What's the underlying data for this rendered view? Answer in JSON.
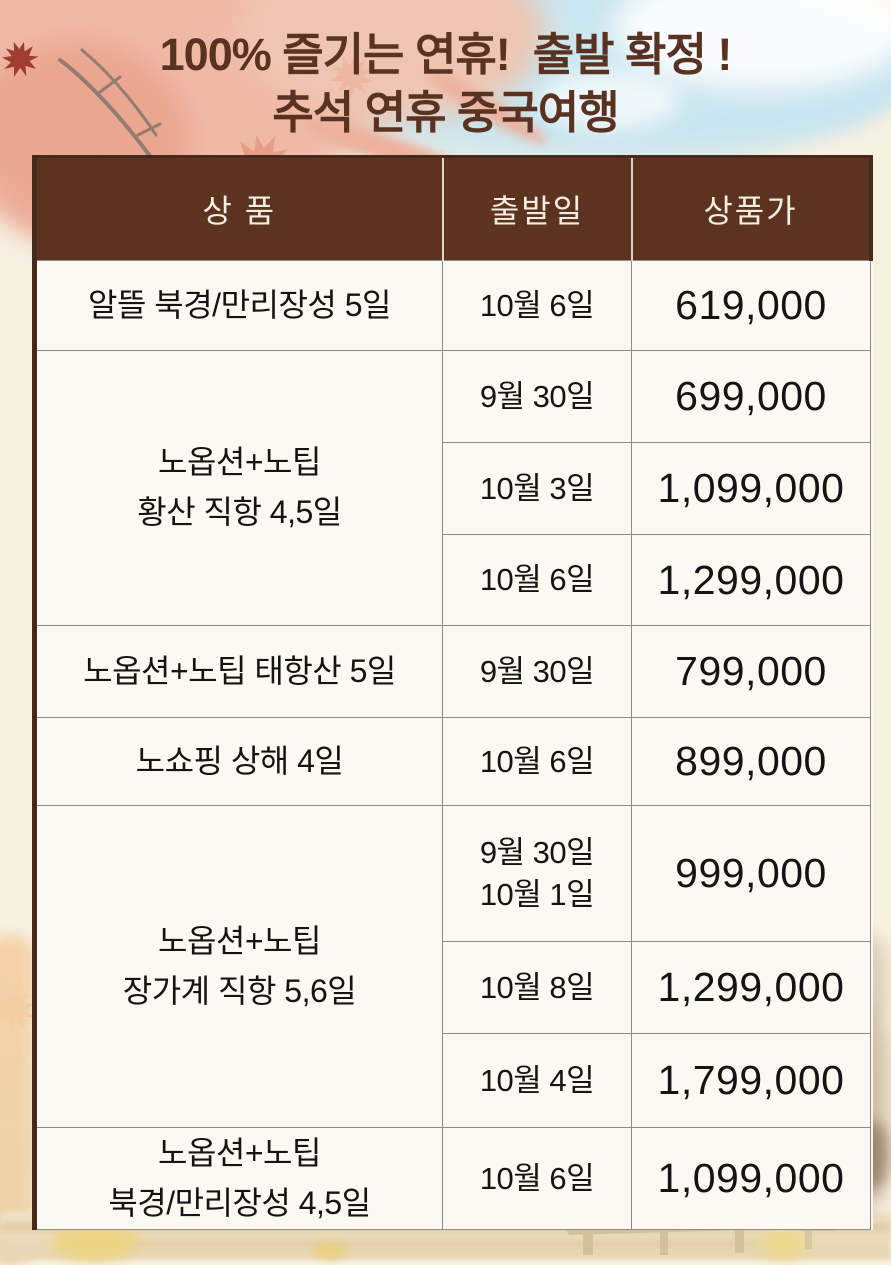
{
  "title": {
    "line1": "100% 즐기는 연휴!  출발 확정 !",
    "line2": "추석 연휴 중국여행"
  },
  "table": {
    "columns": [
      "상 품",
      "출발일",
      "상품가"
    ],
    "groups": [
      {
        "product_lines": [
          "알뜰  북경/만리장성 5일"
        ],
        "departures": [
          {
            "date_lines": [
              "10월 6일"
            ],
            "price": "619,000"
          }
        ]
      },
      {
        "product_lines": [
          "노옵션+노팁",
          "황산 직항 4,5일"
        ],
        "departures": [
          {
            "date_lines": [
              "9월 30일"
            ],
            "price": "699,000"
          },
          {
            "date_lines": [
              "10월 3일"
            ],
            "price": "1,099,000"
          },
          {
            "date_lines": [
              "10월 6일"
            ],
            "price": "1,299,000"
          }
        ]
      },
      {
        "product_lines": [
          "노옵션+노팁 태항산 5일"
        ],
        "departures": [
          {
            "date_lines": [
              "9월 30일"
            ],
            "price": "799,000"
          }
        ]
      },
      {
        "product_lines": [
          "노쇼핑 상해 4일"
        ],
        "departures": [
          {
            "date_lines": [
              "10월 6일"
            ],
            "price": "899,000"
          }
        ]
      },
      {
        "product_lines": [
          "노옵션+노팁",
          "장가계 직항 5,6일"
        ],
        "departures": [
          {
            "date_lines": [
              "9월 30일",
              "10월 1일"
            ],
            "price": "999,000"
          },
          {
            "date_lines": [
              "10월 8일"
            ],
            "price": "1,299,000"
          },
          {
            "date_lines": [
              "10월 4일"
            ],
            "price": "1,799,000"
          }
        ]
      },
      {
        "product_lines": [
          "노옵션+노팁",
          "북경/만리장성 4,5일"
        ],
        "departures": [
          {
            "date_lines": [
              "10월 6일"
            ],
            "price": "1,099,000"
          }
        ]
      }
    ]
  },
  "colors": {
    "header_bg": "#5C331E",
    "outer_border": "#46291B",
    "grid_line": "#8E8B84",
    "cell_bg": "#FBF9F2",
    "title_text": "#5A3222",
    "header_text": "#F3EDE2",
    "body_text": "#141414"
  }
}
